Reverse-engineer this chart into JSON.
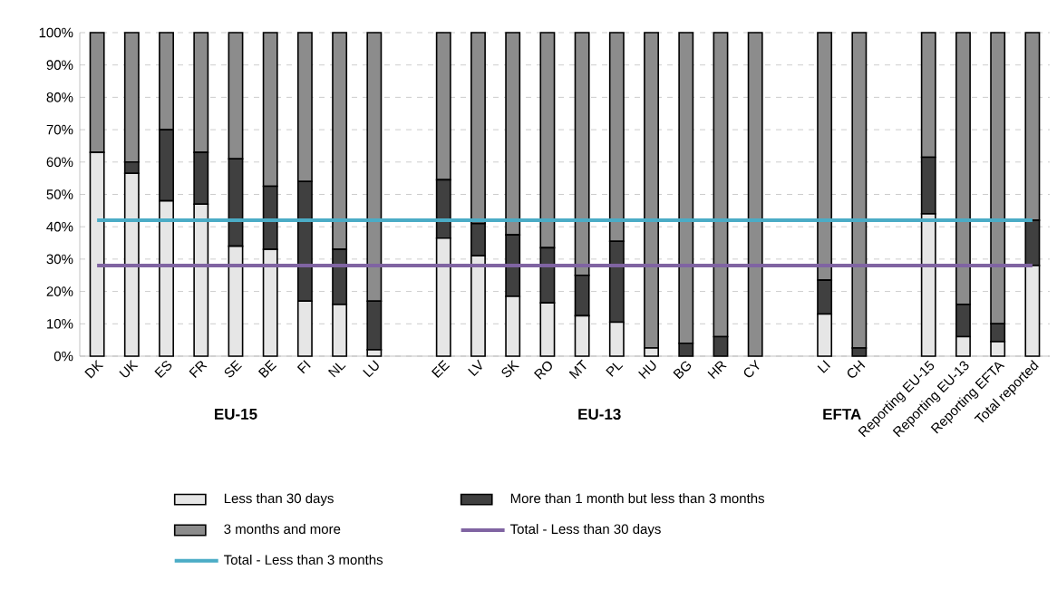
{
  "chart_data": {
    "type": "bar",
    "stacked": true,
    "categories": [
      "DK",
      "UK",
      "ES",
      "FR",
      "SE",
      "BE",
      "FI",
      "NL",
      "LU",
      null,
      "EE",
      "LV",
      "SK",
      "RO",
      "MT",
      "PL",
      "HU",
      "BG",
      "HR",
      "CY",
      null,
      "LI",
      "CH",
      null,
      "Reporting EU-15",
      "Reporting EU-13",
      "Reporting EFTA",
      "Total reported"
    ],
    "series": [
      {
        "name": "Less than 30 days",
        "color": "#e6e6e6",
        "values": [
          63,
          56.5,
          48,
          47,
          34,
          33,
          17,
          16,
          2,
          null,
          36.5,
          31,
          18.5,
          16.5,
          12.5,
          10.5,
          2.5,
          0,
          0,
          0,
          null,
          13,
          0,
          null,
          44,
          6,
          4.5,
          28
        ]
      },
      {
        "name": "More than 1 month but less than 3 months",
        "color": "#404040",
        "values": [
          0,
          3.5,
          22,
          16,
          27,
          19.5,
          37,
          17,
          15,
          null,
          18,
          10,
          19,
          17,
          12.5,
          25,
          0,
          4,
          6,
          0,
          null,
          10.5,
          2.5,
          null,
          17.5,
          10,
          5.5,
          14
        ]
      },
      {
        "name": "3 months and more",
        "color": "#8c8c8c",
        "values": [
          37,
          40,
          30,
          37,
          39,
          47.5,
          46,
          67,
          83,
          null,
          45.5,
          59,
          62.5,
          66.5,
          75,
          64.5,
          97.5,
          96,
          94,
          100,
          null,
          76.5,
          97.5,
          null,
          38.5,
          84,
          90,
          58
        ]
      },
      {
        "name": "Total - Less than 30 days",
        "type": "line",
        "color": "#8064a2",
        "values": [
          28,
          28,
          28,
          28,
          28,
          28,
          28,
          28,
          28,
          28,
          28,
          28,
          28,
          28,
          28,
          28,
          28,
          28,
          28,
          28,
          28,
          28,
          28,
          28,
          28,
          28,
          28,
          28
        ]
      },
      {
        "name": "Total - Less than 3 months",
        "type": "line",
        "color": "#4bacc6",
        "values": [
          42,
          42,
          42,
          42,
          42,
          42,
          42,
          42,
          42,
          42,
          42,
          42,
          42,
          42,
          42,
          42,
          42,
          42,
          42,
          42,
          42,
          42,
          42,
          42,
          42,
          42,
          42,
          42
        ]
      }
    ],
    "ylim": [
      0,
      100
    ],
    "yticks": [
      {
        "value": 0,
        "label": "0%"
      },
      {
        "value": 10,
        "label": "10%"
      },
      {
        "value": 20,
        "label": "20%"
      },
      {
        "value": 30,
        "label": "30%"
      },
      {
        "value": 40,
        "label": "40%"
      },
      {
        "value": 50,
        "label": "50%"
      },
      {
        "value": 60,
        "label": "60%"
      },
      {
        "value": 70,
        "label": "70%"
      },
      {
        "value": 80,
        "label": "80%"
      },
      {
        "value": 90,
        "label": "90%"
      },
      {
        "value": 100,
        "label": "100%"
      }
    ],
    "grid": "y",
    "legend": "bottom",
    "marker": "none",
    "annotations": [
      "EU-15",
      "EU-13",
      "EFTA"
    ]
  }
}
